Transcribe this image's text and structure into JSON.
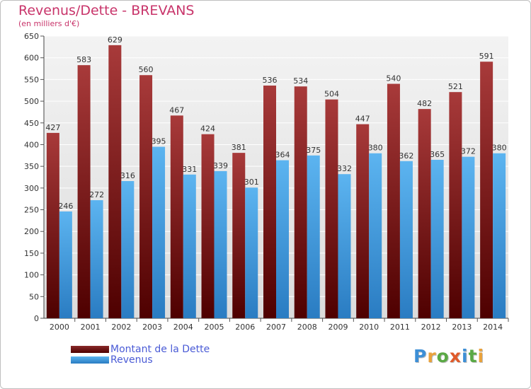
{
  "header": {
    "title": "Revenus/Dette - BREVANS",
    "subtitle": "(en milliers d'€)"
  },
  "chart_data": {
    "type": "bar",
    "title": "Revenus/Dette - BREVANS",
    "subtitle": "(en milliers d'€)",
    "categories": [
      "2000",
      "2001",
      "2002",
      "2003",
      "2004",
      "2005",
      "2006",
      "2007",
      "2008",
      "2009",
      "2010",
      "2011",
      "2012",
      "2013",
      "2014"
    ],
    "series": [
      {
        "name": "Montant de la Dette",
        "values": [
          427,
          583,
          629,
          560,
          467,
          424,
          381,
          536,
          534,
          504,
          447,
          540,
          482,
          521,
          591
        ],
        "color": "#7a1e1e"
      },
      {
        "name": "Revenus",
        "values": [
          246,
          272,
          316,
          395,
          331,
          339,
          301,
          364,
          375,
          332,
          380,
          362,
          365,
          372,
          380
        ],
        "color": "#4aa3e8"
      }
    ],
    "ylim": [
      0,
      650
    ],
    "yticks": [
      0,
      50,
      100,
      150,
      200,
      250,
      300,
      350,
      400,
      450,
      500,
      550,
      600,
      650
    ],
    "grid": true,
    "legend": "bottom-left"
  },
  "legend": {
    "items": [
      {
        "label": "Montant de la Dette",
        "color": "#6b1414"
      },
      {
        "label": "Revenus",
        "color": "#4aa3e8"
      }
    ]
  },
  "logo": {
    "letters": [
      "P",
      "r",
      "o",
      "x",
      "i",
      "t",
      "i"
    ],
    "colors": [
      "#3d8fd6",
      "#e9a23b",
      "#5aa945",
      "#e05a2a",
      "#3d8fd6",
      "#5aa945",
      "#e9a23b"
    ]
  }
}
